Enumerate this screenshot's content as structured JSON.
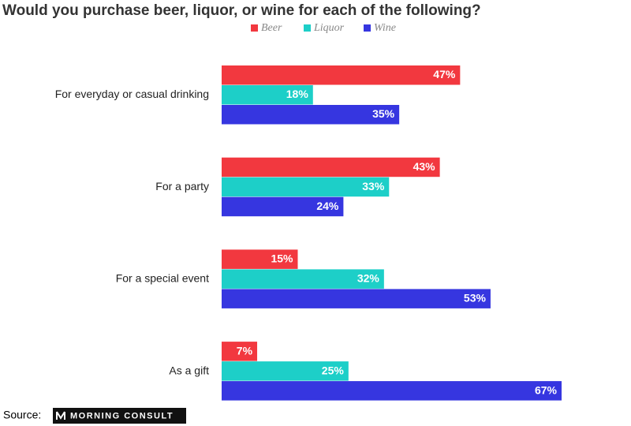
{
  "chart_data": {
    "type": "hbar",
    "title": "Would you purchase beer, liquor, or wine for each of the following?",
    "categories": [
      "For everyday or casual drinking",
      "For a party",
      "For a special event",
      "As a gift"
    ],
    "series": [
      {
        "name": "Beer",
        "color": "#f2383f",
        "values": [
          47,
          43,
          15,
          7
        ],
        "value_labels": [
          "47%",
          "43%",
          "15%",
          "7%"
        ]
      },
      {
        "name": "Liquor",
        "color": "#1dcfc8",
        "values": [
          18,
          33,
          32,
          25
        ],
        "value_labels": [
          "18%",
          "33%",
          "32%",
          "25%"
        ]
      },
      {
        "name": "Wine",
        "color": "#3636e0",
        "values": [
          35,
          24,
          53,
          67
        ],
        "value_labels": [
          "35%",
          "24%",
          "53%",
          "67%"
        ]
      }
    ],
    "legend": "top",
    "source": "Source:",
    "source_logo": "MORNING CONSULT"
  }
}
